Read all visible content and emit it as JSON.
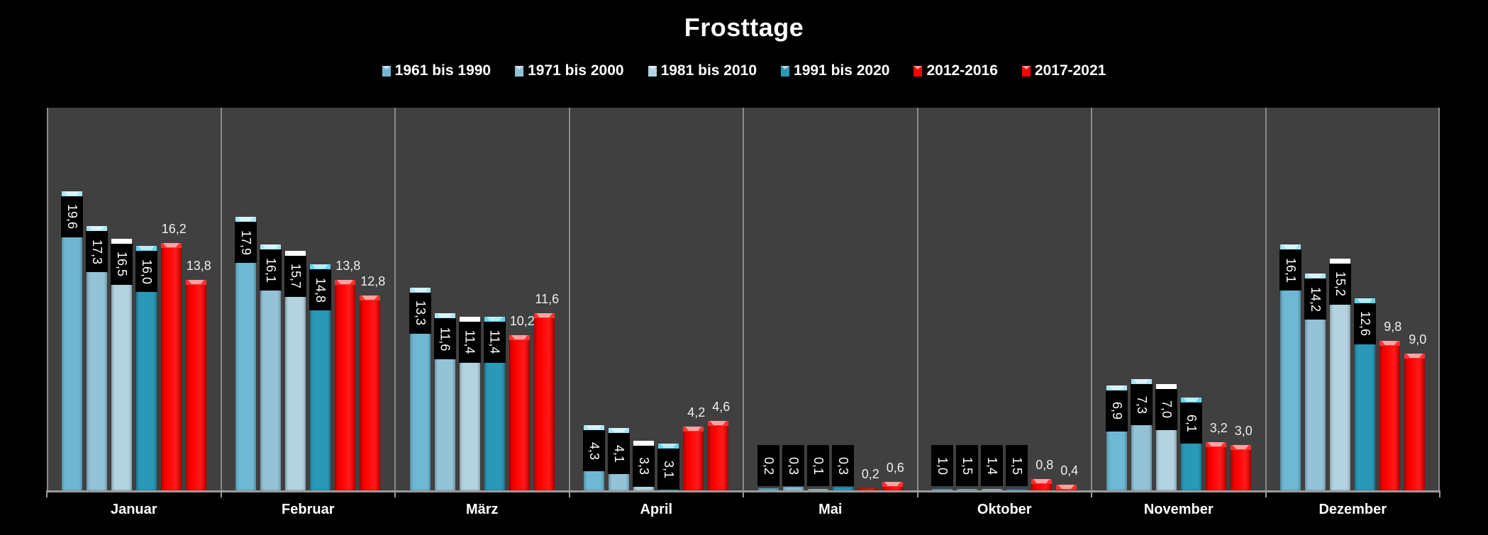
{
  "chart_data": {
    "type": "bar",
    "title": "Frosttage",
    "xlabel": "",
    "ylabel": "",
    "ylim": [
      0,
      25
    ],
    "grid": false,
    "legend_position": "top",
    "categories": [
      "Januar",
      "Februar",
      "März",
      "April",
      "Mai",
      "Oktober",
      "November",
      "Dezember"
    ],
    "series": [
      {
        "name": "1961 bis 1990",
        "color": "#6fb8d4",
        "values": [
          19.6,
          17.9,
          13.3,
          4.3,
          0.2,
          1.0,
          6.9,
          16.1
        ],
        "labels": [
          "19,6",
          "17,9",
          "13,3",
          "4,3",
          "0,2",
          "1,0",
          "6,9",
          "16,1"
        ]
      },
      {
        "name": "1971 bis 2000",
        "color": "#94c3d8",
        "values": [
          17.3,
          16.1,
          11.6,
          4.1,
          0.3,
          1.5,
          7.3,
          14.2
        ],
        "labels": [
          "17,3",
          "16,1",
          "11,6",
          "4,1",
          "0,3",
          "1,5",
          "7,3",
          "14,2"
        ]
      },
      {
        "name": "1981 bis 2010",
        "color": "#b4d3e0",
        "values": [
          16.5,
          15.7,
          11.4,
          3.3,
          0.1,
          1.4,
          7.0,
          15.2
        ],
        "labels": [
          "16,5",
          "15,7",
          "11,4",
          "3,3",
          "0,1",
          "1,4",
          "7,0",
          "15,2"
        ]
      },
      {
        "name": "1991 bis 2020",
        "color": "#2a99b8",
        "values": [
          16.0,
          14.8,
          11.4,
          3.1,
          0.3,
          1.5,
          6.1,
          12.6
        ],
        "labels": [
          "16,0",
          "14,8",
          "11,4",
          "3,1",
          "0,3",
          "1,5",
          "6,1",
          "12,6"
        ]
      },
      {
        "name": "2012-2016",
        "color": "#ff0000",
        "values": [
          16.2,
          13.8,
          10.2,
          4.2,
          0.2,
          0.8,
          3.2,
          9.8
        ],
        "labels": [
          "16,2",
          "13,8",
          "10,2",
          "4,2",
          "0,2",
          "0,8",
          "3,2",
          "9,8"
        ]
      },
      {
        "name": "2017-2021",
        "color": "#ff0000",
        "values": [
          13.8,
          12.8,
          11.6,
          4.6,
          0.6,
          0.4,
          3.0,
          9.0
        ],
        "labels": [
          "13,8",
          "12,8",
          "11,6",
          "4,6",
          "0,6",
          "0,4",
          "3,0",
          "9,0"
        ]
      }
    ],
    "display_heights_override": {
      "Oktober": [
        0.15,
        0.15,
        0.15,
        0.15,
        0.8,
        0.4
      ]
    }
  },
  "colors": {
    "background": "#000000",
    "plot_background": "#404040",
    "separator": "#8a8a8a"
  }
}
